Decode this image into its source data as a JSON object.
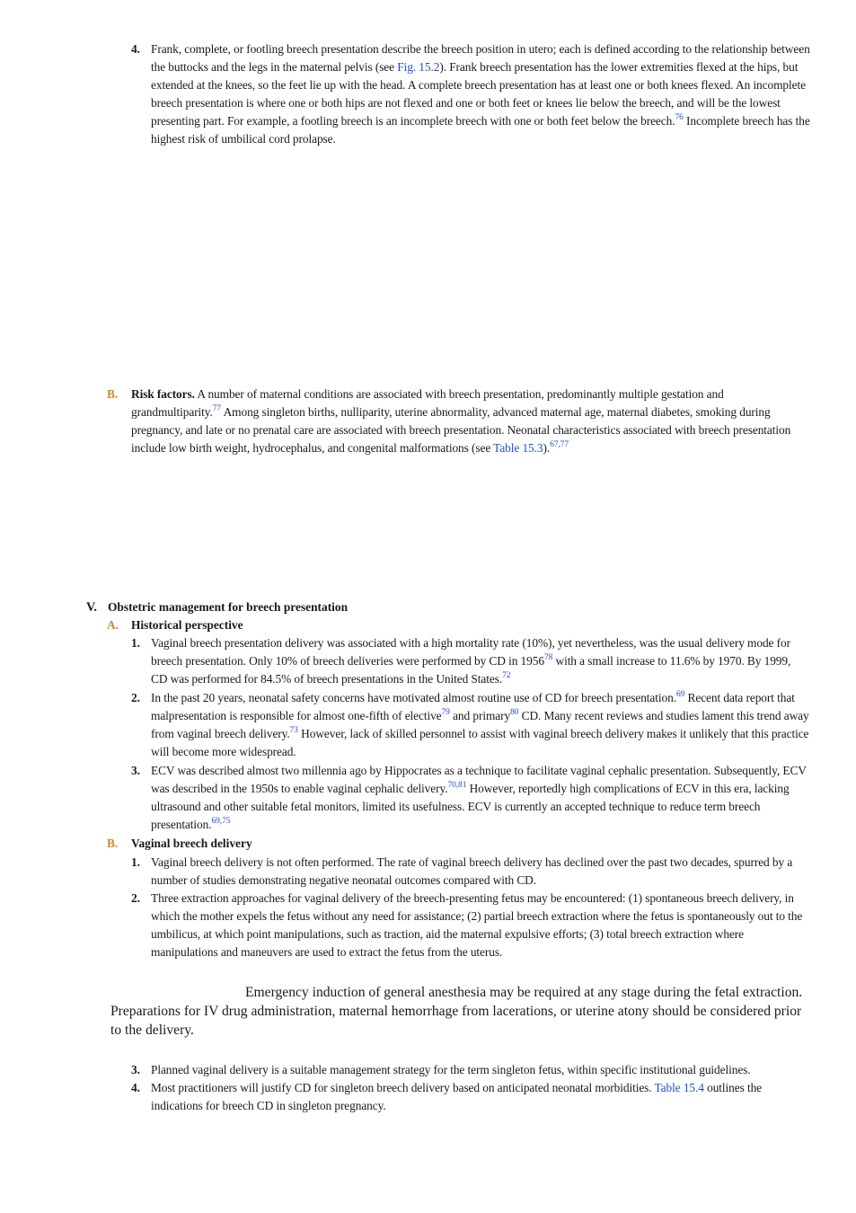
{
  "item4_frank": {
    "num": "4.",
    "text": "Frank, complete, or footling breech presentation describe the breech position in utero; each is defined according to the relationship between the buttocks and the legs in the maternal pelvis (see ",
    "link": "Fig. 15.2",
    "text2": "). Frank breech presentation has the lower extremities flexed at the hips, but extended at the knees, so the feet lie up with the head. A complete breech presentation has at least one or both knees flexed. An incomplete breech presentation is where one or both hips are not flexed and one or both feet or knees lie below the breech, and will be the lowest presenting part. For example, a footling breech is an incomplete breech with one or both feet below the breech.",
    "ref": "76",
    "text3": " Incomplete breech has the highest risk of umbilical cord prolapse."
  },
  "risk": {
    "letter": "B.",
    "title": "Risk factors.",
    "text": " A number of maternal conditions are associated with breech presentation, predominantly multiple gestation and grandmultiparity.",
    "ref1": "77",
    "text2": " Among singleton births, nulliparity, uterine abnormality, advanced maternal age, maternal diabetes, smoking during pregnancy, and late or no prenatal care are associated with breech presentation. Neonatal characteristics associated with breech presentation include low birth weight, hydrocephalus, and congenital malformations (see ",
    "link": "Table 15.3",
    "text3": ").",
    "ref2": "67,77"
  },
  "section5": {
    "num": "V.",
    "title": "Obstetric management for breech presentation"
  },
  "historical": {
    "letter": "A.",
    "title": "Historical perspective",
    "i1": {
      "num": "1.",
      "text": "Vaginal breech presentation delivery was associated with a high mortality rate (10%), yet nevertheless, was the usual delivery mode for breech presentation. Only 10% of breech deliveries were performed by CD in 1956",
      "ref1": "78",
      "text2": " with a small increase to 11.6% by 1970. By 1999, CD was performed for 84.5% of breech presentations in the United States.",
      "ref2": "72"
    },
    "i2": {
      "num": "2.",
      "text": "In the past 20 years, neonatal safety concerns have motivated almost routine use of CD for breech presentation.",
      "ref1": "69",
      "text2": " Recent data report that malpresentation is responsible for almost one-fifth of elective",
      "ref2": "79",
      "text3": " and primary",
      "ref3": "80",
      "text4": " CD. Many recent reviews and studies lament this trend away from vaginal breech delivery.",
      "ref4": "73",
      "text5": " However, lack of skilled personnel to assist with vaginal breech delivery makes it unlikely that this practice will become more widespread."
    },
    "i3": {
      "num": "3.",
      "text": "ECV was described almost two millennia ago by Hippocrates as a technique to facilitate vaginal cephalic presentation. Subsequently, ECV was described in the 1950s to enable vaginal cephalic delivery.",
      "ref1": "70,81",
      "text2": " However, reportedly high complications of ECV in this era, lacking ultrasound and other suitable fetal monitors, limited its usefulness. ECV is currently an accepted technique to reduce term breech presentation.",
      "ref2": "69,75"
    }
  },
  "vaginal": {
    "letter": "B.",
    "title": "Vaginal breech delivery",
    "i1": {
      "num": "1.",
      "text": "Vaginal breech delivery is not often performed. The rate of vaginal breech delivery has declined over the past two decades, spurred by a number of studies demonstrating negative neonatal outcomes compared with CD."
    },
    "i2": {
      "num": "2.",
      "text": "Three extraction approaches for vaginal delivery of the breech-presenting fetus may be encountered: (1) spontaneous breech delivery, in which the mother expels the fetus without any need for assistance; (2) partial breech extraction where the fetus is spontaneously out to the umbilicus, at which point manipulations, such as traction, aid the maternal expulsive efforts; (3) total breech extraction where manipulations and maneuvers are used to extract the fetus from the uterus."
    },
    "callout": "Emergency induction of general anesthesia may be required at any stage during the fetal extraction. Preparations for IV drug administration, maternal hemorrhage from lacerations, or uterine atony should be considered prior to the delivery.",
    "i3": {
      "num": "3.",
      "text": "Planned vaginal delivery is a suitable management strategy for the term singleton fetus, within specific institutional guidelines."
    },
    "i4": {
      "num": "4.",
      "text": "Most practitioners will justify CD for singleton breech delivery based on anticipated neonatal morbidities. ",
      "link": "Table 15.4",
      "text2": " outlines the indications for breech CD in singleton pregnancy."
    }
  }
}
